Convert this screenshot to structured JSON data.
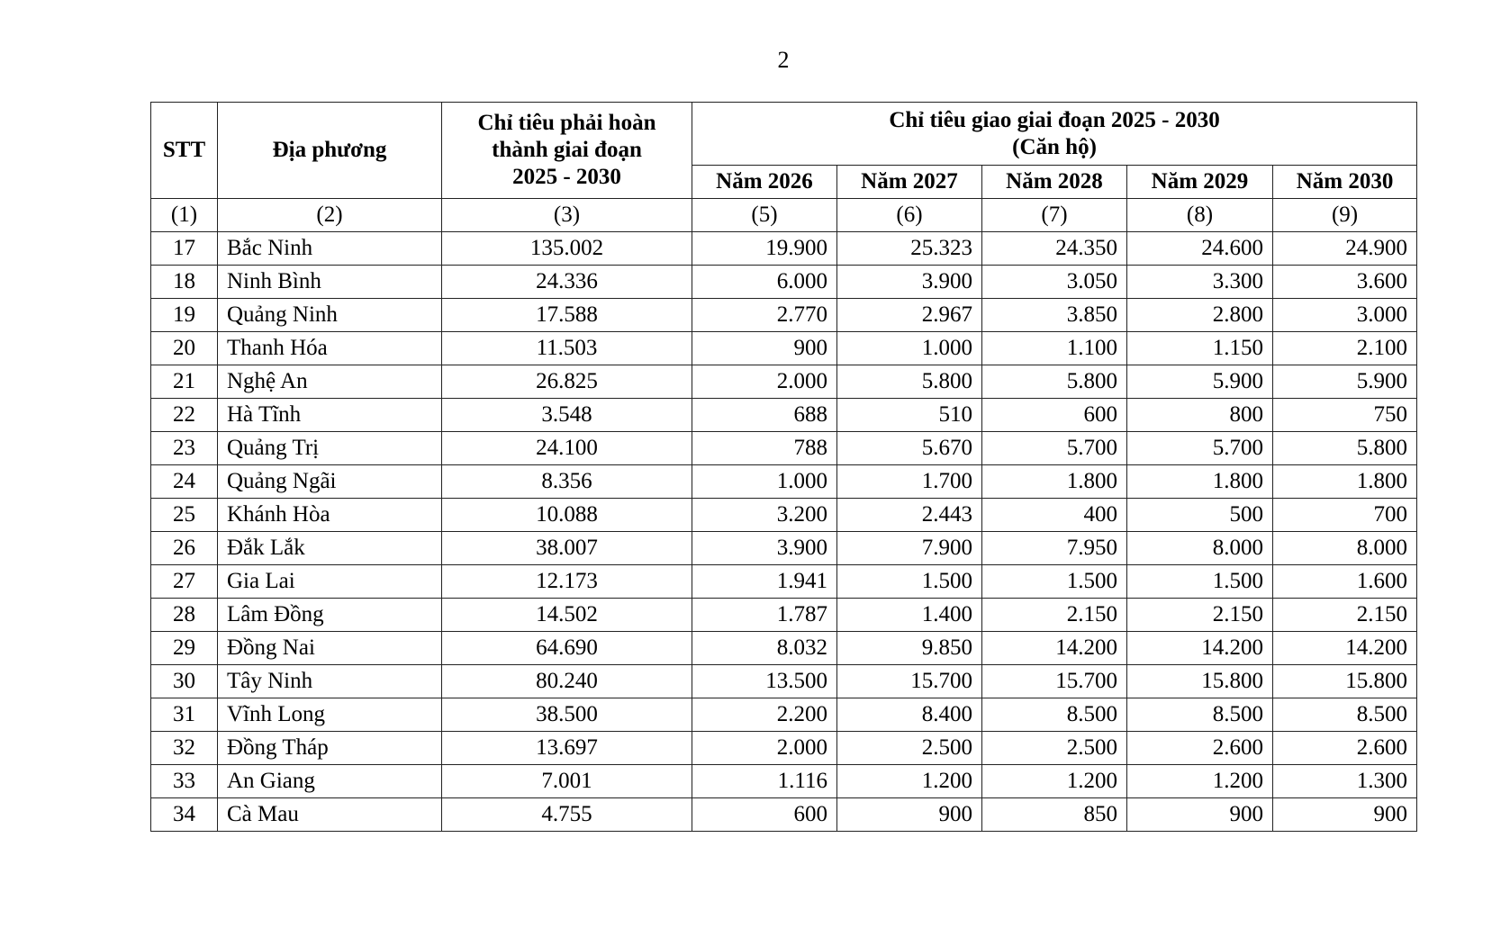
{
  "page_number": "2",
  "table": {
    "headers": {
      "stt": "STT",
      "locality": "Địa phương",
      "target_lines": [
        "Chỉ tiêu phải hoàn",
        "thành giai đoạn",
        "2025 - 2030"
      ],
      "assigned": "Chỉ tiêu giao giai đoạn 2025 - 2030",
      "assigned_unit": "(Căn hộ)",
      "years": [
        "Năm 2026",
        "Năm 2027",
        "Năm 2028",
        "Năm 2029",
        "Năm 2030"
      ]
    },
    "column_numbers": [
      "(1)",
      "(2)",
      "(3)",
      "(5)",
      "(6)",
      "(7)",
      "(8)",
      "(9)"
    ],
    "rows": [
      [
        "17",
        "Bắc Ninh",
        "135.002",
        "19.900",
        "25.323",
        "24.350",
        "24.600",
        "24.900"
      ],
      [
        "18",
        "Ninh Bình",
        "24.336",
        "6.000",
        "3.900",
        "3.050",
        "3.300",
        "3.600"
      ],
      [
        "19",
        "Quảng Ninh",
        "17.588",
        "2.770",
        "2.967",
        "3.850",
        "2.800",
        "3.000"
      ],
      [
        "20",
        "Thanh Hóa",
        "11.503",
        "900",
        "1.000",
        "1.100",
        "1.150",
        "2.100"
      ],
      [
        "21",
        "Nghệ An",
        "26.825",
        "2.000",
        "5.800",
        "5.800",
        "5.900",
        "5.900"
      ],
      [
        "22",
        "Hà Tĩnh",
        "3.548",
        "688",
        "510",
        "600",
        "800",
        "750"
      ],
      [
        "23",
        "Quảng Trị",
        "24.100",
        "788",
        "5.670",
        "5.700",
        "5.700",
        "5.800"
      ],
      [
        "24",
        "Quảng Ngãi",
        "8.356",
        "1.000",
        "1.700",
        "1.800",
        "1.800",
        "1.800"
      ],
      [
        "25",
        "Khánh Hòa",
        "10.088",
        "3.200",
        "2.443",
        "400",
        "500",
        "700"
      ],
      [
        "26",
        "Đắk Lắk",
        "38.007",
        "3.900",
        "7.900",
        "7.950",
        "8.000",
        "8.000"
      ],
      [
        "27",
        "Gia Lai",
        "12.173",
        "1.941",
        "1.500",
        "1.500",
        "1.500",
        "1.600"
      ],
      [
        "28",
        "Lâm Đồng",
        "14.502",
        "1.787",
        "1.400",
        "2.150",
        "2.150",
        "2.150"
      ],
      [
        "29",
        "Đồng Nai",
        "64.690",
        "8.032",
        "9.850",
        "14.200",
        "14.200",
        "14.200"
      ],
      [
        "30",
        "Tây Ninh",
        "80.240",
        "13.500",
        "15.700",
        "15.700",
        "15.800",
        "15.800"
      ],
      [
        "31",
        "Vĩnh Long",
        "38.500",
        "2.200",
        "8.400",
        "8.500",
        "8.500",
        "8.500"
      ],
      [
        "32",
        "Đồng Tháp",
        "13.697",
        "2.000",
        "2.500",
        "2.500",
        "2.600",
        "2.600"
      ],
      [
        "33",
        "An Giang",
        "7.001",
        "1.116",
        "1.200",
        "1.200",
        "1.200",
        "1.300"
      ],
      [
        "34",
        "Cà Mau",
        "4.755",
        "600",
        "900",
        "850",
        "900",
        "900"
      ]
    ]
  }
}
